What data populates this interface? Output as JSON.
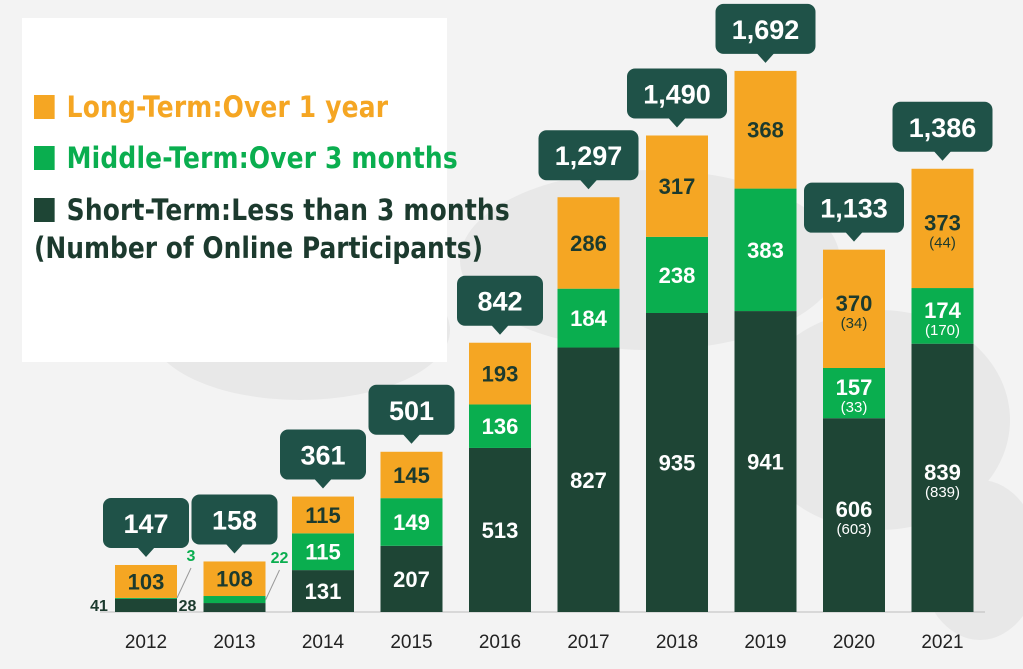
{
  "legend": {
    "long_label": "Long-Term:Over 1 year",
    "middle_label": "Middle-Term:Over 3 months",
    "short_label": "Short-Term:Less than 3 months",
    "online_note": "(Number of Online Participants)"
  },
  "colors": {
    "long": "#f5a623",
    "middle": "#0aae4f",
    "short": "#1e4535",
    "callout": "#1f5248",
    "background_panel": "#ffffff"
  },
  "chart_data": {
    "type": "bar",
    "stacked": true,
    "categories": [
      "2012",
      "2013",
      "2014",
      "2015",
      "2016",
      "2017",
      "2018",
      "2019",
      "2020",
      "2021"
    ],
    "series": [
      {
        "name": "Short-Term:Less than 3 months",
        "values": [
          41,
          28,
          131,
          207,
          513,
          827,
          935,
          941,
          606,
          839
        ],
        "online": [
          null,
          null,
          null,
          null,
          null,
          null,
          null,
          null,
          "(603)",
          "(839)"
        ]
      },
      {
        "name": "Middle-Term:Over 3 months",
        "values": [
          3,
          22,
          115,
          149,
          136,
          184,
          238,
          383,
          157,
          174
        ],
        "online": [
          null,
          null,
          null,
          null,
          null,
          null,
          null,
          null,
          "(33)",
          "(170)"
        ]
      },
      {
        "name": "Long-Term:Over 1 year",
        "values": [
          103,
          108,
          115,
          145,
          193,
          286,
          317,
          368,
          370,
          373
        ],
        "online": [
          null,
          null,
          null,
          null,
          null,
          null,
          null,
          null,
          "(34)",
          "(44)"
        ]
      }
    ],
    "totals": [
      "147",
      "158",
      "361",
      "501",
      "842",
      "1,297",
      "1,490",
      "1,692",
      "1,133",
      "1,386"
    ],
    "legend_position": "top-left",
    "grid": false
  }
}
